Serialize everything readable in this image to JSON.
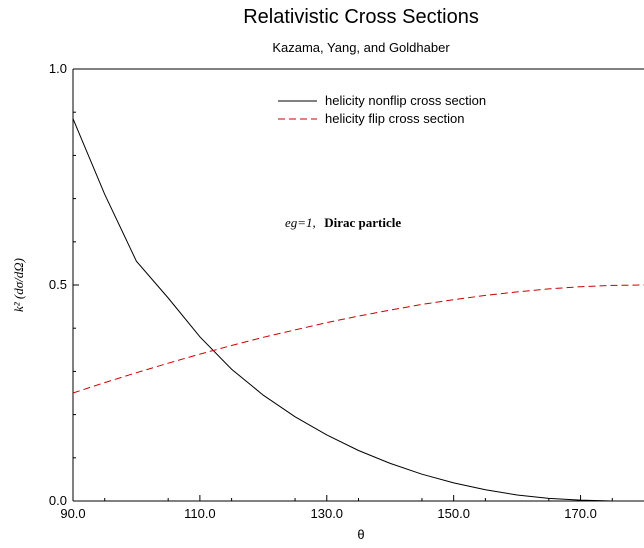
{
  "chart_data": {
    "type": "line",
    "title": "Relativistic Cross Sections",
    "subtitle": "Kazama, Yang, and Goldhaber",
    "xlabel": "θ",
    "ylabel": "k² (dσ/dΩ)",
    "xlim": [
      90,
      180
    ],
    "ylim": [
      0,
      1
    ],
    "xticks": [
      90,
      110,
      130,
      150,
      170
    ],
    "xtick_labels": [
      "90.0",
      "110.0",
      "130.0",
      "150.0",
      "170.0"
    ],
    "yticks": [
      0,
      0.5,
      1
    ],
    "ytick_labels": [
      "0.0",
      "0.5",
      "1.0"
    ],
    "grid": false,
    "legend_position": "top-right",
    "annotation": {
      "italic": "eg=1,",
      "bold": "Dirac particle"
    },
    "series": [
      {
        "name": "helicity nonflip cross section",
        "color": "#000000",
        "style": "solid",
        "x": [
          90,
          95,
          100,
          105,
          110,
          115,
          120,
          125,
          130,
          135,
          140,
          145,
          150,
          155,
          160,
          165,
          170,
          175,
          180
        ],
        "y": [
          0.885,
          0.71,
          0.555,
          0.47,
          0.38,
          0.305,
          0.245,
          0.195,
          0.153,
          0.117,
          0.087,
          0.062,
          0.042,
          0.026,
          0.014,
          0.006,
          0.002,
          0.0,
          0.0
        ]
      },
      {
        "name": "helicity flip cross section",
        "color": "#cc0000",
        "style": "dashed",
        "x": [
          90,
          95,
          100,
          105,
          110,
          115,
          120,
          125,
          130,
          135,
          140,
          145,
          150,
          155,
          160,
          165,
          170,
          175,
          180
        ],
        "y": [
          0.25,
          0.274,
          0.297,
          0.319,
          0.34,
          0.36,
          0.379,
          0.396,
          0.413,
          0.428,
          0.442,
          0.455,
          0.466,
          0.476,
          0.484,
          0.491,
          0.496,
          0.499,
          0.5
        ]
      }
    ]
  }
}
